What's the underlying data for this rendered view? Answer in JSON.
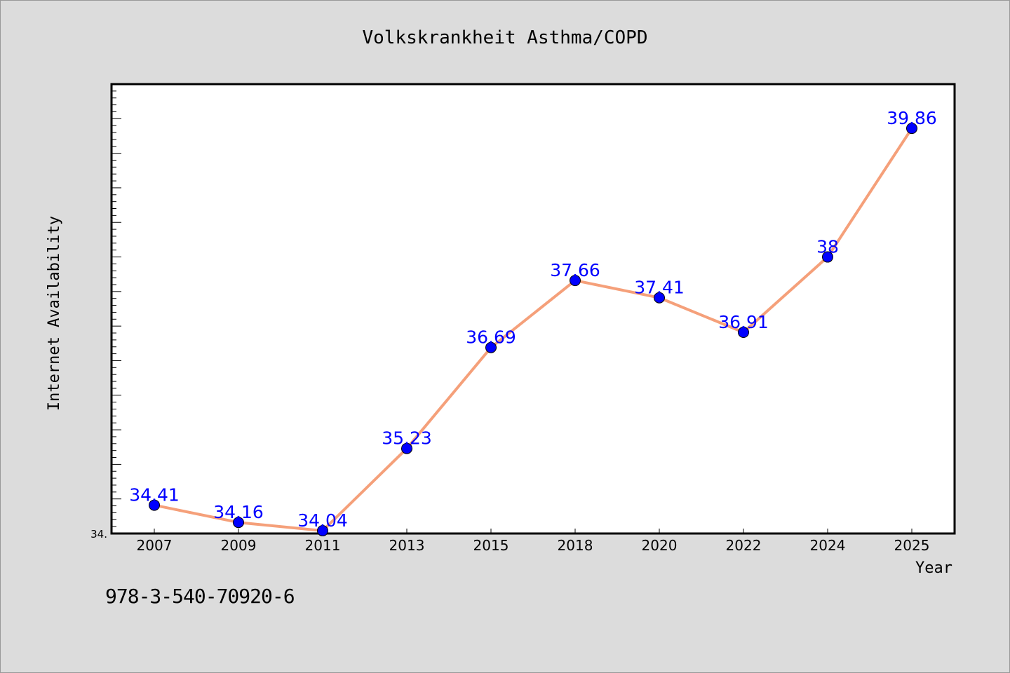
{
  "chart_data": {
    "type": "line",
    "title": "Volkskrankheit Asthma/COPD",
    "xlabel": "Year",
    "ylabel": "Internet Availability",
    "categories": [
      "2007",
      "2009",
      "2011",
      "2013",
      "2015",
      "2018",
      "2020",
      "2022",
      "2024",
      "2025"
    ],
    "series": [
      {
        "values": [
          34.41,
          34.16,
          34.04,
          35.23,
          36.69,
          37.66,
          37.41,
          36.91,
          38,
          39.86
        ],
        "labels": [
          "34.41",
          "34.16",
          "34.04",
          "35.23",
          "36.69",
          "37.66",
          "37.41",
          "36.91",
          "38",
          "39.86"
        ]
      }
    ],
    "ylim": [
      34.0,
      40.5
    ],
    "y_tick_labels": [
      "34."
    ],
    "grid": false,
    "line_color": "#f5a07a",
    "marker_color": "#0000ff",
    "label_color": "#0000ff"
  },
  "footer": {
    "isbn": "978-3-540-70920-6"
  }
}
